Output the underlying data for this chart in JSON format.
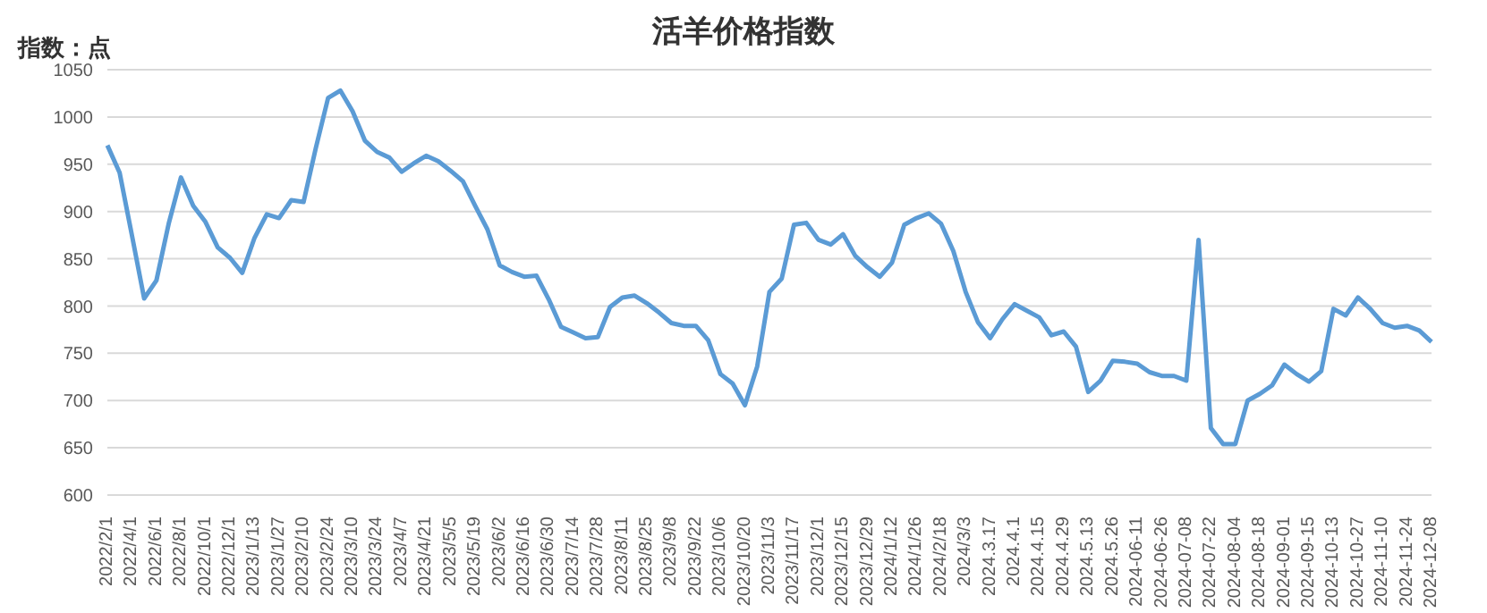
{
  "chart_data": {
    "type": "line",
    "title": "活羊价格指数",
    "ylabel": "指数：点",
    "categories": [
      "2022/2/1",
      null,
      "2022/4/1",
      null,
      "2022/6/1",
      null,
      "2022/8/1",
      null,
      "2022/10/1",
      null,
      "2022/12/1",
      null,
      "2023/1/13",
      null,
      "2023/1/27",
      null,
      "2023/2/10",
      null,
      "2023/2/24",
      null,
      "2023/3/10",
      null,
      "2023/3/24",
      null,
      "2023/4/7",
      null,
      "2023/4/21",
      null,
      "2023/5/5",
      null,
      "2023/5/19",
      null,
      "2023/6/2",
      null,
      "2023/6/16",
      null,
      "2023/6/30",
      null,
      "2023/7/14",
      null,
      "2023/7/28",
      null,
      "2023/8/11",
      null,
      "2023/8/25",
      null,
      "2023/9/8",
      null,
      "2023/9/22",
      null,
      "2023/10/6",
      null,
      "2023/10/20",
      null,
      "2023/11/3",
      null,
      "2023/11/17",
      null,
      "2023/12/1",
      null,
      "2023/12/15",
      null,
      "2023/12/29",
      null,
      "2024/1/12",
      null,
      "2024/1/26",
      null,
      "2024/2/18",
      null,
      "2024/3/3",
      null,
      "2024.3.17",
      null,
      "2024.4.1",
      null,
      "2024.4.15",
      null,
      "2024.4.29",
      null,
      "2024.5.13",
      null,
      "2024.5.26",
      null,
      "2024-06-11",
      null,
      "2024-06-26",
      null,
      "2024-07-08",
      null,
      "2024-07-22",
      null,
      "2024-08-04",
      null,
      "2024-08-18",
      null,
      "2024-09-01",
      null,
      "2024-09-15",
      null,
      "2024-10-13",
      null,
      "2024-10-27",
      null,
      "2024-11-10",
      null,
      "2024-11-24",
      null,
      "2024-12-08"
    ],
    "series": [
      {
        "color": "#5b9bd5",
        "values": [
          970,
          941,
          875,
          808,
          827,
          887,
          936,
          906,
          889,
          862,
          851,
          835,
          872,
          897,
          893,
          912,
          910,
          967,
          1020,
          1028,
          1006,
          975,
          963,
          957,
          942,
          951,
          959,
          953,
          943,
          932,
          906,
          881,
          843,
          836,
          831,
          832,
          807,
          778,
          772,
          766,
          767,
          799,
          809,
          811,
          803,
          793,
          782,
          779,
          779,
          764,
          728,
          718,
          695,
          736,
          815,
          829,
          886,
          888,
          870,
          865,
          876,
          853,
          841,
          831,
          846,
          886,
          893,
          898,
          887,
          858,
          815,
          783,
          766,
          786,
          802,
          795,
          788,
          769,
          773,
          757,
          709,
          721,
          742,
          741,
          739,
          730,
          726,
          726,
          721,
          870,
          671,
          654,
          654,
          700,
          707,
          716,
          738,
          728,
          720,
          731,
          797,
          790,
          809,
          797,
          782,
          777,
          779,
          774,
          762
        ]
      }
    ],
    "ylim": [
      600,
      1050
    ],
    "yticks": [
      600,
      650,
      700,
      750,
      800,
      850,
      900,
      950,
      1000,
      1050
    ],
    "grid": "y",
    "legend": false,
    "marker": "none",
    "line_style": "solid"
  }
}
